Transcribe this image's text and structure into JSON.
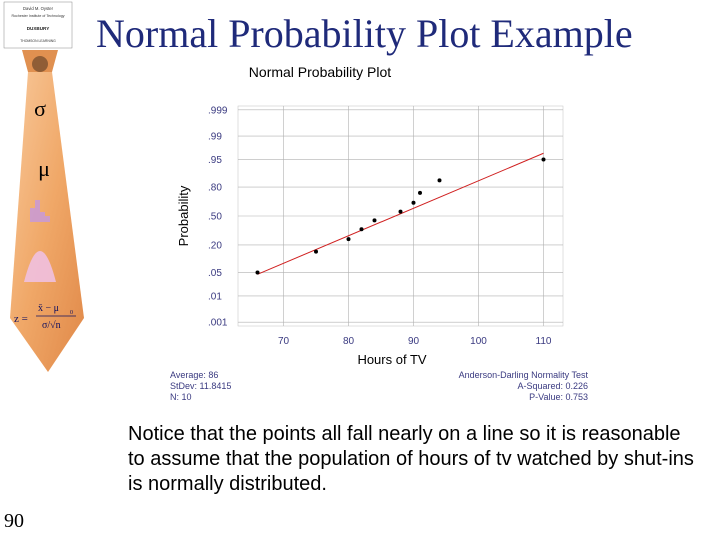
{
  "slide": {
    "title": "Normal Probability Plot Example",
    "page_number": "90",
    "notice": "Notice that the points all fall nearly on a line so it is reasonable to assume that the population of hours of tv watched by shut-ins is normally distributed."
  },
  "tie": {
    "logo_lines": [
      "David M. Oyster",
      "Rochester Institute of Technology",
      "DUXBURY",
      "THOMSON LEARNING"
    ],
    "sigma": "σ",
    "mu": "μ",
    "formula_lhs": "z =",
    "formula_num": "x̄ − μ",
    "formula_num_sub": "0",
    "formula_den": "σ/√n",
    "colors": {
      "tie": "#f0a868",
      "tie_dark": "#d9782f",
      "greek": "#d04a20"
    }
  },
  "stats": {
    "left": [
      "Average: 86",
      "StDev: 11.8415",
      "N: 10"
    ],
    "right": [
      "Anderson-Darling Normality Test",
      "A-Squared: 0.226",
      "P-Value:   0.753"
    ]
  },
  "chart_data": {
    "type": "scatter",
    "title": "Normal Probability Plot",
    "xlabel": "Hours of TV",
    "ylabel": "Probability",
    "x_ticks": [
      70,
      80,
      90,
      100,
      110
    ],
    "y_ticks": [
      ".999",
      ".99",
      ".95",
      ".80",
      ".50",
      ".20",
      ".05",
      ".01",
      ".001"
    ],
    "y_tick_probs": [
      0.999,
      0.99,
      0.95,
      0.8,
      0.5,
      0.2,
      0.05,
      0.01,
      0.001
    ],
    "xlim": [
      63,
      113
    ],
    "points": [
      {
        "x": 66,
        "p": 0.05
      },
      {
        "x": 75,
        "p": 0.15
      },
      {
        "x": 80,
        "p": 0.25
      },
      {
        "x": 82,
        "p": 0.35
      },
      {
        "x": 84,
        "p": 0.45
      },
      {
        "x": 88,
        "p": 0.55
      },
      {
        "x": 90,
        "p": 0.65
      },
      {
        "x": 91,
        "p": 0.75
      },
      {
        "x": 94,
        "p": 0.85
      },
      {
        "x": 110,
        "p": 0.95
      }
    ],
    "fit_line": {
      "x": [
        66,
        110
      ],
      "p": [
        0.045,
        0.966
      ]
    },
    "grid": true,
    "colors": {
      "points": "#000000",
      "fit": "#d02020",
      "grid": "#b0b0b0",
      "text": "#3a3a80"
    }
  }
}
